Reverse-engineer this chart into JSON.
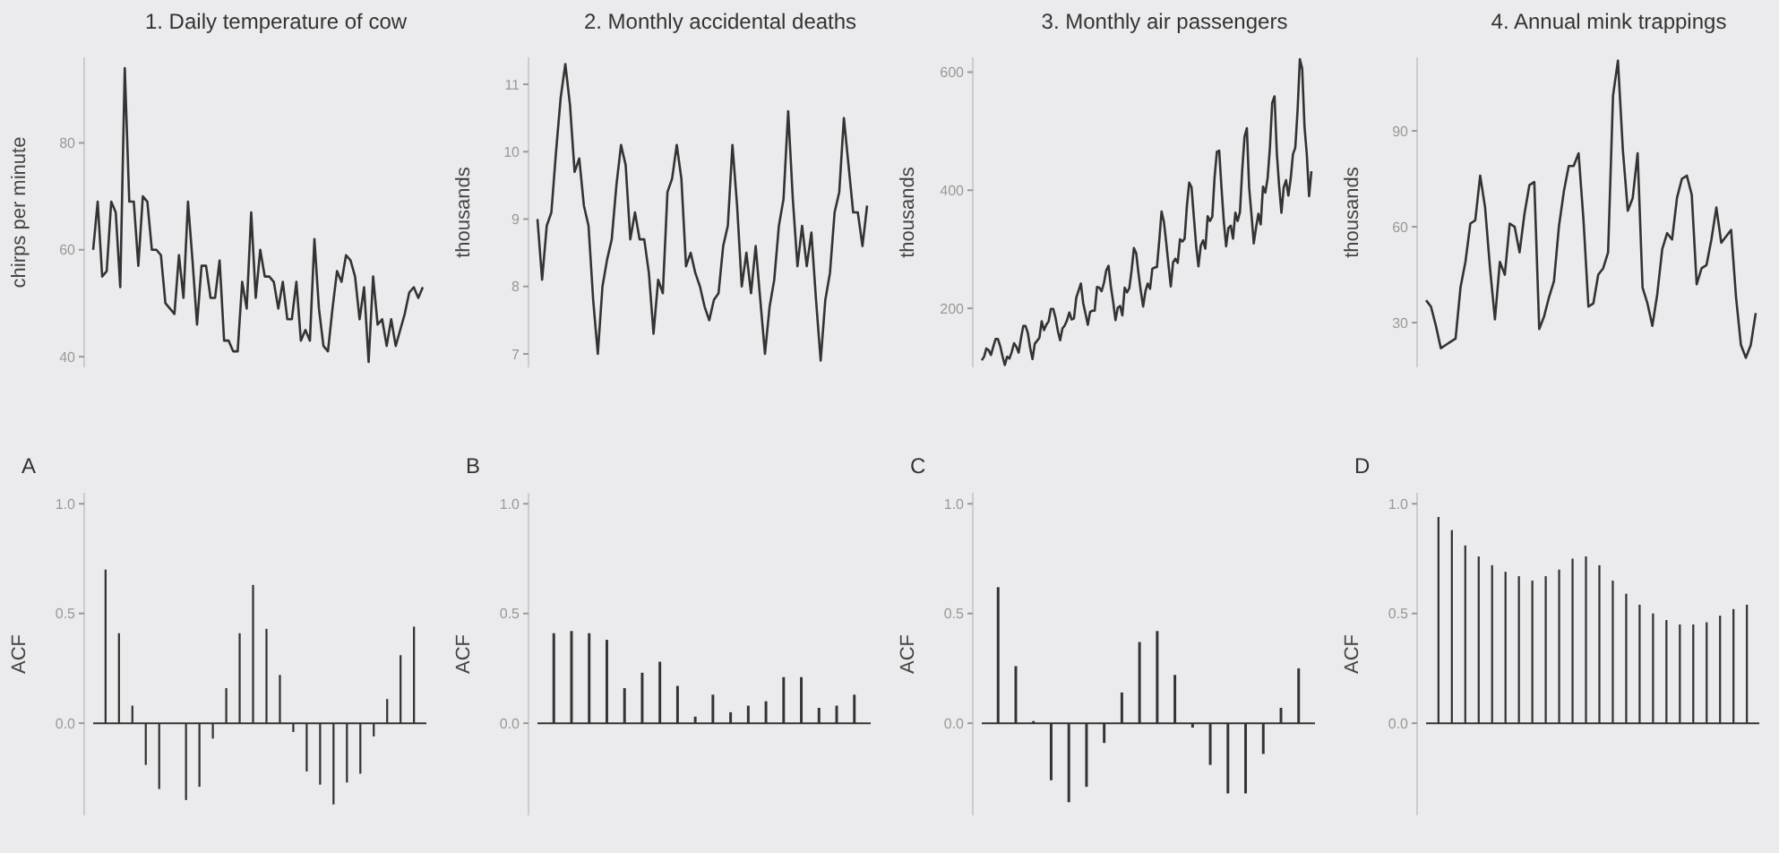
{
  "chart_data": [
    {
      "type": "line",
      "title": "1. Daily temperature of cow",
      "ylabel": "chirps per minute",
      "color": "#333333",
      "ylim": [
        38,
        96
      ],
      "yticks": [
        40,
        60,
        80
      ],
      "categories": [
        null,
        null,
        null,
        null,
        null,
        null,
        null,
        null,
        null,
        null,
        null,
        null,
        null,
        null,
        null,
        null,
        null,
        null,
        null,
        null,
        null,
        null,
        null,
        null,
        null,
        null,
        null,
        null,
        null,
        null,
        null,
        null,
        null,
        null,
        null,
        null,
        null,
        null,
        null,
        null,
        null,
        null,
        null,
        null,
        null,
        null,
        null,
        null,
        null,
        null,
        null,
        null,
        null,
        null,
        null,
        null,
        null,
        null,
        null,
        null,
        null,
        null,
        null,
        null,
        null,
        null,
        null,
        null,
        null,
        null,
        null,
        null,
        null,
        null
      ],
      "values": [
        60,
        69,
        55,
        56,
        69,
        67,
        53,
        94,
        69,
        69,
        57,
        70,
        69,
        60,
        60,
        59,
        50,
        49,
        48,
        59,
        51,
        69,
        58,
        46,
        57,
        57,
        51,
        51,
        58,
        43,
        43,
        41,
        41,
        54,
        49,
        67,
        51,
        60,
        55,
        55,
        54,
        49,
        54,
        47,
        47,
        54,
        43,
        45,
        43,
        62,
        49,
        42,
        41,
        49,
        56,
        54,
        59,
        58,
        55,
        47,
        53,
        39,
        55,
        46,
        47,
        42,
        47,
        42,
        45,
        48,
        52,
        53,
        51,
        53
      ]
    },
    {
      "type": "line",
      "title": "2. Monthly accidental deaths",
      "ylabel": "thousands",
      "color": "#333333",
      "ylim": [
        6.8,
        11.4
      ],
      "yticks": [
        7,
        8,
        9,
        10,
        11
      ],
      "categories": [
        null,
        null,
        null,
        null,
        null,
        null,
        null,
        null,
        null,
        null,
        null,
        null,
        null,
        null,
        null,
        null,
        null,
        null,
        null,
        null,
        null,
        null,
        null,
        null,
        null,
        null,
        null,
        null,
        null,
        null,
        null,
        null,
        null,
        null,
        null,
        null,
        null,
        null,
        null,
        null,
        null,
        null,
        null,
        null,
        null,
        null,
        null,
        null,
        null,
        null,
        null,
        null,
        null,
        null,
        null,
        null,
        null,
        null,
        null,
        null,
        null,
        null,
        null,
        null,
        null,
        null,
        null,
        null,
        null,
        null,
        null,
        null
      ],
      "values": [
        9.0,
        8.1,
        8.9,
        9.1,
        10.0,
        10.8,
        11.3,
        10.7,
        9.7,
        9.9,
        9.2,
        8.9,
        7.8,
        7.0,
        8.0,
        8.4,
        8.7,
        9.5,
        10.1,
        9.8,
        8.7,
        9.1,
        8.7,
        8.7,
        8.2,
        7.3,
        8.1,
        7.9,
        9.4,
        9.6,
        10.1,
        9.6,
        8.3,
        8.5,
        8.2,
        8.0,
        7.7,
        7.5,
        7.8,
        7.9,
        8.6,
        8.9,
        10.1,
        9.2,
        8.0,
        8.5,
        7.9,
        8.6,
        7.8,
        7.0,
        7.7,
        8.1,
        8.9,
        9.3,
        10.6,
        9.3,
        8.3,
        8.9,
        8.3,
        8.8,
        7.8,
        6.9,
        7.8,
        8.2,
        9.1,
        9.4,
        10.5,
        9.8,
        9.1,
        9.1,
        8.6,
        9.2
      ]
    },
    {
      "type": "line",
      "title": "3. Monthly air passengers",
      "ylabel": "thousands",
      "color": "#333333",
      "ylim": [
        100,
        625
      ],
      "yticks": [
        200,
        400,
        600
      ],
      "categories": [
        null,
        null,
        null,
        null,
        null,
        null,
        null,
        null,
        null,
        null,
        null,
        null,
        null,
        null,
        null,
        null,
        null,
        null,
        null,
        null,
        null,
        null,
        null,
        null,
        null,
        null,
        null,
        null,
        null,
        null,
        null,
        null,
        null,
        null,
        null,
        null,
        null,
        null,
        null,
        null,
        null,
        null,
        null,
        null,
        null,
        null,
        null,
        null,
        null,
        null,
        null,
        null,
        null,
        null,
        null,
        null,
        null,
        null,
        null,
        null,
        null,
        null,
        null,
        null,
        null,
        null,
        null,
        null,
        null,
        null,
        null,
        null,
        null,
        null,
        null,
        null,
        null,
        null,
        null,
        null,
        null,
        null,
        null,
        null,
        null,
        null,
        null,
        null,
        null,
        null,
        null,
        null,
        null,
        null,
        null,
        null,
        null,
        null,
        null,
        null,
        null,
        null,
        null,
        null,
        null,
        null,
        null,
        null,
        null,
        null,
        null,
        null,
        null,
        null,
        null,
        null,
        null,
        null,
        null,
        null,
        null,
        null,
        null,
        null,
        null,
        null,
        null,
        null,
        null,
        null,
        null,
        null,
        null,
        null,
        null,
        null,
        null,
        null,
        null,
        null,
        null,
        null,
        null,
        null
      ],
      "values": [
        112,
        118,
        132,
        129,
        121,
        135,
        148,
        148,
        136,
        119,
        104,
        118,
        115,
        126,
        141,
        135,
        125,
        149,
        170,
        170,
        158,
        133,
        114,
        140,
        145,
        150,
        178,
        163,
        172,
        178,
        199,
        199,
        184,
        162,
        146,
        166,
        171,
        180,
        193,
        181,
        183,
        218,
        230,
        242,
        209,
        191,
        172,
        194,
        196,
        196,
        236,
        235,
        229,
        243,
        264,
        272,
        237,
        211,
        180,
        201,
        204,
        188,
        235,
        227,
        234,
        264,
        302,
        293,
        259,
        229,
        203,
        229,
        242,
        233,
        267,
        269,
        270,
        315,
        364,
        347,
        312,
        274,
        237,
        278,
        284,
        277,
        317,
        313,
        318,
        374,
        413,
        405,
        355,
        306,
        271,
        306,
        315,
        301,
        356,
        348,
        355,
        422,
        465,
        467,
        404,
        347,
        305,
        336,
        340,
        318,
        362,
        348,
        363,
        435,
        491,
        505,
        404,
        359,
        310,
        337,
        360,
        342,
        406,
        396,
        420,
        472,
        548,
        559,
        463,
        407,
        362,
        405,
        417,
        391,
        419,
        461,
        472,
        535,
        622,
        606,
        508,
        461,
        390,
        432
      ]
    },
    {
      "type": "line",
      "title": "4. Annual mink trappings",
      "ylabel": "thousands",
      "color": "#333333",
      "ylim": [
        16,
        113
      ],
      "yticks": [
        30,
        60,
        90
      ],
      "categories": [
        null,
        null,
        null,
        null,
        null,
        null,
        null,
        null,
        null,
        null,
        null,
        null,
        null,
        null,
        null,
        null,
        null,
        null,
        null,
        null,
        null,
        null,
        null,
        null,
        null,
        null,
        null,
        null,
        null,
        null,
        null,
        null,
        null,
        null,
        null,
        null,
        null,
        null,
        null,
        null,
        null,
        null,
        null,
        null,
        null,
        null,
        null,
        null,
        null,
        null,
        null,
        null,
        null,
        null,
        null,
        null,
        null,
        null,
        null,
        null,
        null,
        null,
        null,
        null,
        null,
        null,
        null,
        null
      ],
      "values": [
        37,
        35,
        29,
        22,
        23,
        24,
        25,
        41,
        49,
        61,
        62,
        76,
        66,
        47,
        31,
        49,
        45,
        61,
        60,
        52,
        64,
        73,
        74,
        28,
        32,
        38,
        43,
        60,
        71,
        79,
        79,
        83,
        62,
        35,
        36,
        45,
        47,
        52,
        101,
        112,
        84,
        65,
        69,
        83,
        41,
        36,
        29,
        39,
        53,
        58,
        56,
        69,
        75,
        76,
        70,
        42,
        47,
        48,
        56,
        66,
        55,
        57,
        59,
        38,
        23,
        19,
        23,
        33
      ]
    },
    {
      "type": "bar",
      "title": "A",
      "ylabel": "ACF",
      "color": "#333333",
      "ylim": [
        -0.42,
        1.05
      ],
      "yticks": [
        {
          "value": 0,
          "label": "0.0"
        },
        {
          "value": 0.5,
          "label": "0.5"
        },
        {
          "value": 1,
          "label": "1.0"
        }
      ],
      "categories": [
        null,
        null,
        null,
        null,
        null,
        null,
        null,
        null,
        null,
        null,
        null,
        null,
        null,
        null,
        null,
        null,
        null,
        null,
        null,
        null,
        null,
        null,
        null,
        null
      ],
      "values": [
        0.7,
        0.41,
        0.08,
        -0.19,
        -0.3,
        0.0,
        -0.35,
        -0.29,
        -0.07,
        0.16,
        0.41,
        0.63,
        0.43,
        0.22,
        -0.04,
        -0.22,
        -0.28,
        -0.37,
        -0.27,
        -0.23,
        -0.06,
        0.11,
        0.31,
        0.44
      ]
    },
    {
      "type": "bar",
      "title": "B",
      "ylabel": "ACF",
      "color": "#333333",
      "ylim": [
        -0.42,
        1.05
      ],
      "yticks": [
        {
          "value": 0,
          "label": "0.0"
        },
        {
          "value": 0.5,
          "label": "0.5"
        },
        {
          "value": 1,
          "label": "1.0"
        }
      ],
      "categories": [
        null,
        null,
        null,
        null,
        null,
        null,
        null,
        null,
        null,
        null,
        null,
        null,
        null,
        null,
        null,
        null,
        null,
        null
      ],
      "values": [
        0.41,
        0.42,
        0.41,
        0.38,
        0.16,
        0.23,
        0.28,
        0.17,
        0.03,
        0.13,
        0.05,
        0.08,
        0.1,
        0.21,
        0.21,
        0.07,
        0.08,
        0.13
      ]
    },
    {
      "type": "bar",
      "title": "C",
      "ylabel": "ACF",
      "color": "#333333",
      "ylim": [
        -0.42,
        1.05
      ],
      "yticks": [
        {
          "value": 0,
          "label": "0.0"
        },
        {
          "value": 0.5,
          "label": "0.5"
        },
        {
          "value": 1,
          "label": "1.0"
        }
      ],
      "categories": [
        null,
        null,
        null,
        null,
        null,
        null,
        null,
        null,
        null,
        null,
        null,
        null,
        null,
        null,
        null,
        null,
        null,
        null
      ],
      "values": [
        0.62,
        0.26,
        0.01,
        -0.26,
        -0.36,
        -0.29,
        -0.09,
        0.14,
        0.37,
        0.42,
        0.22,
        -0.02,
        -0.19,
        -0.32,
        -0.32,
        -0.14,
        0.07,
        0.25
      ]
    },
    {
      "type": "bar",
      "title": "D",
      "ylabel": "ACF",
      "color": "#333333",
      "ylim": [
        -0.42,
        1.05
      ],
      "yticks": [
        {
          "value": 0,
          "label": "0.0"
        },
        {
          "value": 0.5,
          "label": "0.5"
        },
        {
          "value": 1,
          "label": "1.0"
        }
      ],
      "categories": [
        null,
        null,
        null,
        null,
        null,
        null,
        null,
        null,
        null,
        null,
        null,
        null,
        null,
        null,
        null,
        null,
        null,
        null,
        null,
        null,
        null,
        null,
        null,
        null
      ],
      "values": [
        0.94,
        0.88,
        0.81,
        0.76,
        0.72,
        0.69,
        0.67,
        0.65,
        0.67,
        0.7,
        0.75,
        0.76,
        0.72,
        0.65,
        0.59,
        0.54,
        0.5,
        0.47,
        0.45,
        0.45,
        0.46,
        0.49,
        0.52,
        0.54
      ]
    }
  ]
}
